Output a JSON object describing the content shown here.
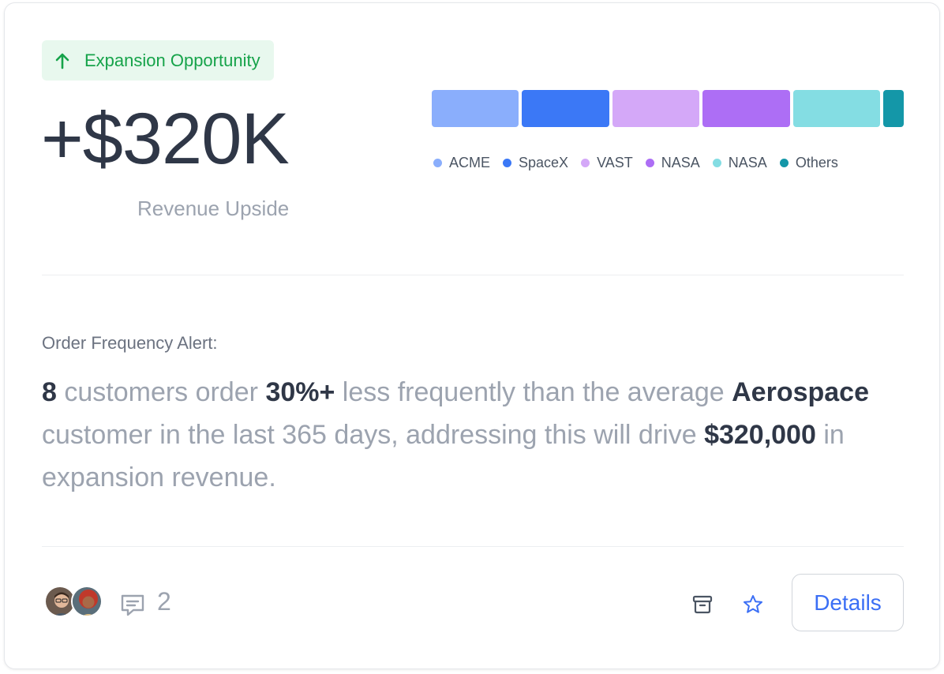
{
  "badge": {
    "label": "Expansion Opportunity",
    "icon": "arrow-up-icon",
    "color": "#16a34a"
  },
  "metric": {
    "value": "+$320K",
    "label": "Revenue Upside"
  },
  "chart_data": {
    "type": "bar",
    "stacked": true,
    "orientation": "horizontal",
    "categories": [
      "ACME",
      "SpaceX",
      "VAST",
      "NASA",
      "NASA",
      "Others"
    ],
    "values": [
      110,
      110,
      110,
      110,
      110,
      26
    ],
    "colors": [
      "#8aaefc",
      "#3b78f6",
      "#d4a8f8",
      "#ad6ef5",
      "#84dde3",
      "#1497a8"
    ],
    "legend": "bottom-left"
  },
  "alert": {
    "label": "Order Frequency Alert:",
    "parts": [
      {
        "t": "8",
        "b": true
      },
      {
        "t": " customers order ",
        "b": false
      },
      {
        "t": "30%+",
        "b": true
      },
      {
        "t": " less frequently than the average ",
        "b": false
      },
      {
        "t": "Aerospace",
        "b": true
      },
      {
        "t": " customer in the last 365 days, addressing this will drive ",
        "b": false
      },
      {
        "t": "$320,000",
        "b": true
      },
      {
        "t": " in expansion revenue.",
        "b": false
      }
    ]
  },
  "footer": {
    "comment_count": "2",
    "details_label": "Details",
    "icons": [
      "comment-icon",
      "archive-icon",
      "star-icon"
    ]
  }
}
